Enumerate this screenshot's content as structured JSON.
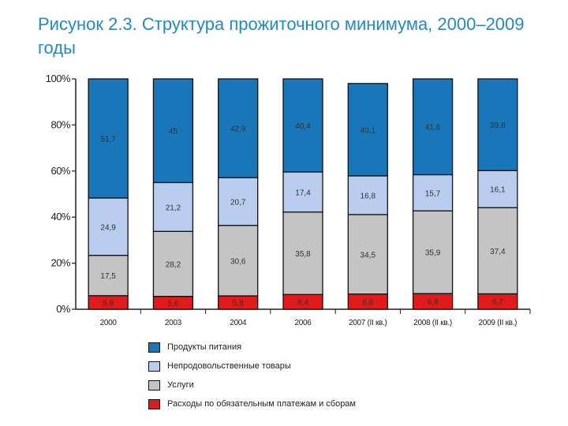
{
  "title": "Рисунок 2.3. Структура прожиточного минимума, 2000–2009 годы",
  "colors": {
    "food": "#1976b8",
    "nonfood": "#b9cdee",
    "services": "#c4c4c4",
    "payments": "#e11b1b"
  },
  "chart_data": {
    "type": "bar",
    "stacked": true,
    "categories": [
      "2000",
      "2003",
      "2004",
      "2006",
      "2007 (II кв.)",
      "2008 (II кв.)",
      "2009 (II кв.)"
    ],
    "series": [
      {
        "name": "Расходы по обязательным платежам и сборам",
        "key": "payments",
        "values": [
          5.9,
          5.6,
          5.8,
          6.4,
          6.6,
          6.8,
          6.7
        ],
        "labels": [
          "5,9",
          "5,6",
          "5,8",
          "6,4",
          "6,6",
          "6,8",
          "6,7"
        ]
      },
      {
        "name": "Услуги",
        "key": "services",
        "values": [
          17.5,
          28.2,
          30.6,
          35.8,
          34.5,
          35.9,
          37.4
        ],
        "labels": [
          "17,5",
          "28,2",
          "30,6",
          "35,8",
          "34,5",
          "35,9",
          "37,4"
        ]
      },
      {
        "name": "Непродовольственные товары",
        "key": "nonfood",
        "values": [
          24.9,
          21.2,
          20.7,
          17.4,
          16.8,
          15.7,
          16.1
        ],
        "labels": [
          "24,9",
          "21,2",
          "20,7",
          "17,4",
          "16,8",
          "15,7",
          "16,1"
        ]
      },
      {
        "name": "Продукты питания",
        "key": "food",
        "values": [
          51.7,
          45,
          42.9,
          40.4,
          40.1,
          41.6,
          39.8
        ],
        "labels": [
          "51,7",
          "45",
          "42,9",
          "40,4",
          "40,1",
          "41,6",
          "39,8"
        ]
      }
    ],
    "yticks": [
      "0%",
      "20%",
      "40%",
      "60%",
      "80%",
      "100%"
    ],
    "ylim": [
      0,
      100
    ],
    "grid": false,
    "legend_position": "bottom"
  },
  "legend": [
    {
      "label": "Продукты питания",
      "key": "food"
    },
    {
      "label": "Непродовольственные товары",
      "key": "nonfood"
    },
    {
      "label": "Услуги",
      "key": "services"
    },
    {
      "label": "Расходы по обязательным платежам и сборам",
      "key": "payments"
    }
  ]
}
